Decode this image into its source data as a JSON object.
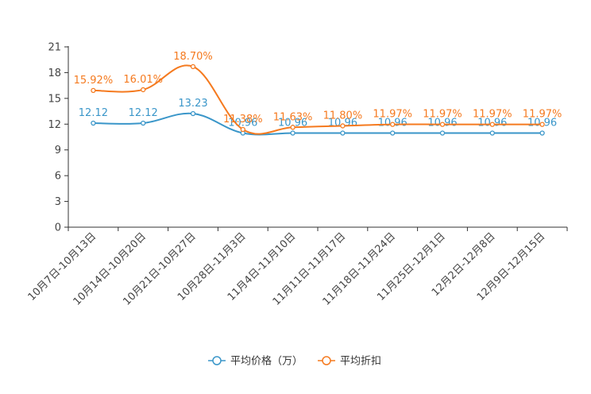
{
  "chart_data": {
    "type": "line",
    "title": "",
    "xlabel": "",
    "ylabel": "",
    "ylim": [
      0,
      21
    ],
    "yticks": [
      0,
      3,
      6,
      9,
      12,
      15,
      18,
      21
    ],
    "grid": false,
    "legend_position": "bottom-center",
    "categories": [
      "10月7日-10月13日",
      "10月14日-10月20日",
      "10月21日-10月27日",
      "10月28日-11月3日",
      "11月4日-11月10日",
      "11月11日-11月17日",
      "11月18日-11月24日",
      "11月25日-12月1日",
      "12月2日-12月8日",
      "12月9日-12月15日"
    ],
    "series": [
      {
        "name": "平均价格（万）",
        "color": "#3a96c9",
        "values": [
          12.12,
          12.12,
          13.23,
          10.96,
          10.96,
          10.96,
          10.96,
          10.96,
          10.96,
          10.96
        ],
        "labels": [
          "12.12",
          "12.12",
          "13.23",
          "10.96",
          "10.96",
          "10.96",
          "10.96",
          "10.96",
          "10.96",
          "10.96"
        ]
      },
      {
        "name": "平均折扣",
        "color": "#f57a1f",
        "values": [
          15.92,
          16.01,
          18.7,
          11.38,
          11.63,
          11.8,
          11.97,
          11.97,
          11.97,
          11.97
        ],
        "labels": [
          "15.92%",
          "16.01%",
          "18.70%",
          "11.38%",
          "11.63%",
          "11.80%",
          "11.97%",
          "11.97%",
          "11.97%",
          "11.97%"
        ]
      }
    ]
  }
}
